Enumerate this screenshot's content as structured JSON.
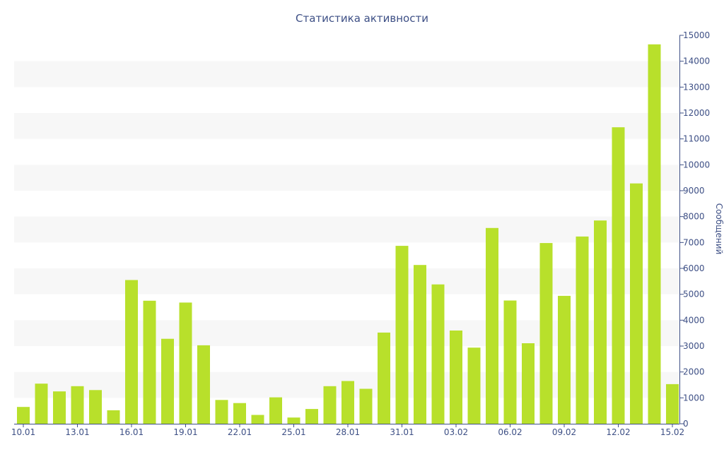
{
  "chart_data": {
    "type": "bar",
    "title": "Статистика активности",
    "xlabel": "",
    "ylabel": "Сообщений",
    "y_axis_side": "right",
    "ylim": [
      0,
      15000
    ],
    "y_ticks": [
      0,
      1000,
      2000,
      3000,
      4000,
      5000,
      6000,
      7000,
      8000,
      9000,
      10000,
      11000,
      12000,
      13000,
      14000,
      15000
    ],
    "grid": "alternating horizontal bands",
    "categories": [
      "10.01",
      "11.01",
      "12.01",
      "13.01",
      "14.01",
      "15.01",
      "16.01",
      "17.01",
      "18.01",
      "19.01",
      "20.01",
      "21.01",
      "22.01",
      "23.01",
      "24.01",
      "25.01",
      "26.01",
      "27.01",
      "28.01",
      "29.01",
      "30.01",
      "31.01",
      "01.02",
      "02.02",
      "03.02",
      "04.02",
      "05.02",
      "06.02",
      "07.02",
      "08.02",
      "09.02",
      "10.02",
      "11.02",
      "12.02",
      "13.02",
      "14.02",
      "15.02"
    ],
    "visible_tick_labels": [
      "10.01",
      "13.01",
      "16.01",
      "19.01",
      "22.01",
      "25.01",
      "28.01",
      "31.01",
      "03.02",
      "06.02",
      "09.02",
      "12.02",
      "15.02"
    ],
    "values": [
      650,
      1550,
      1250,
      1450,
      1300,
      520,
      5550,
      4750,
      3280,
      4680,
      3030,
      920,
      800,
      340,
      1020,
      240,
      570,
      1450,
      1650,
      1350,
      3520,
      6870,
      6130,
      5380,
      3600,
      2940,
      7560,
      4760,
      3110,
      6980,
      4940,
      7230,
      7850,
      11450,
      9280,
      14650,
      1530
    ]
  },
  "colors": {
    "bar": "#b8e02b",
    "band": "#f7f7f7",
    "text": "#3d4f85",
    "axis": "#3d4f85"
  }
}
